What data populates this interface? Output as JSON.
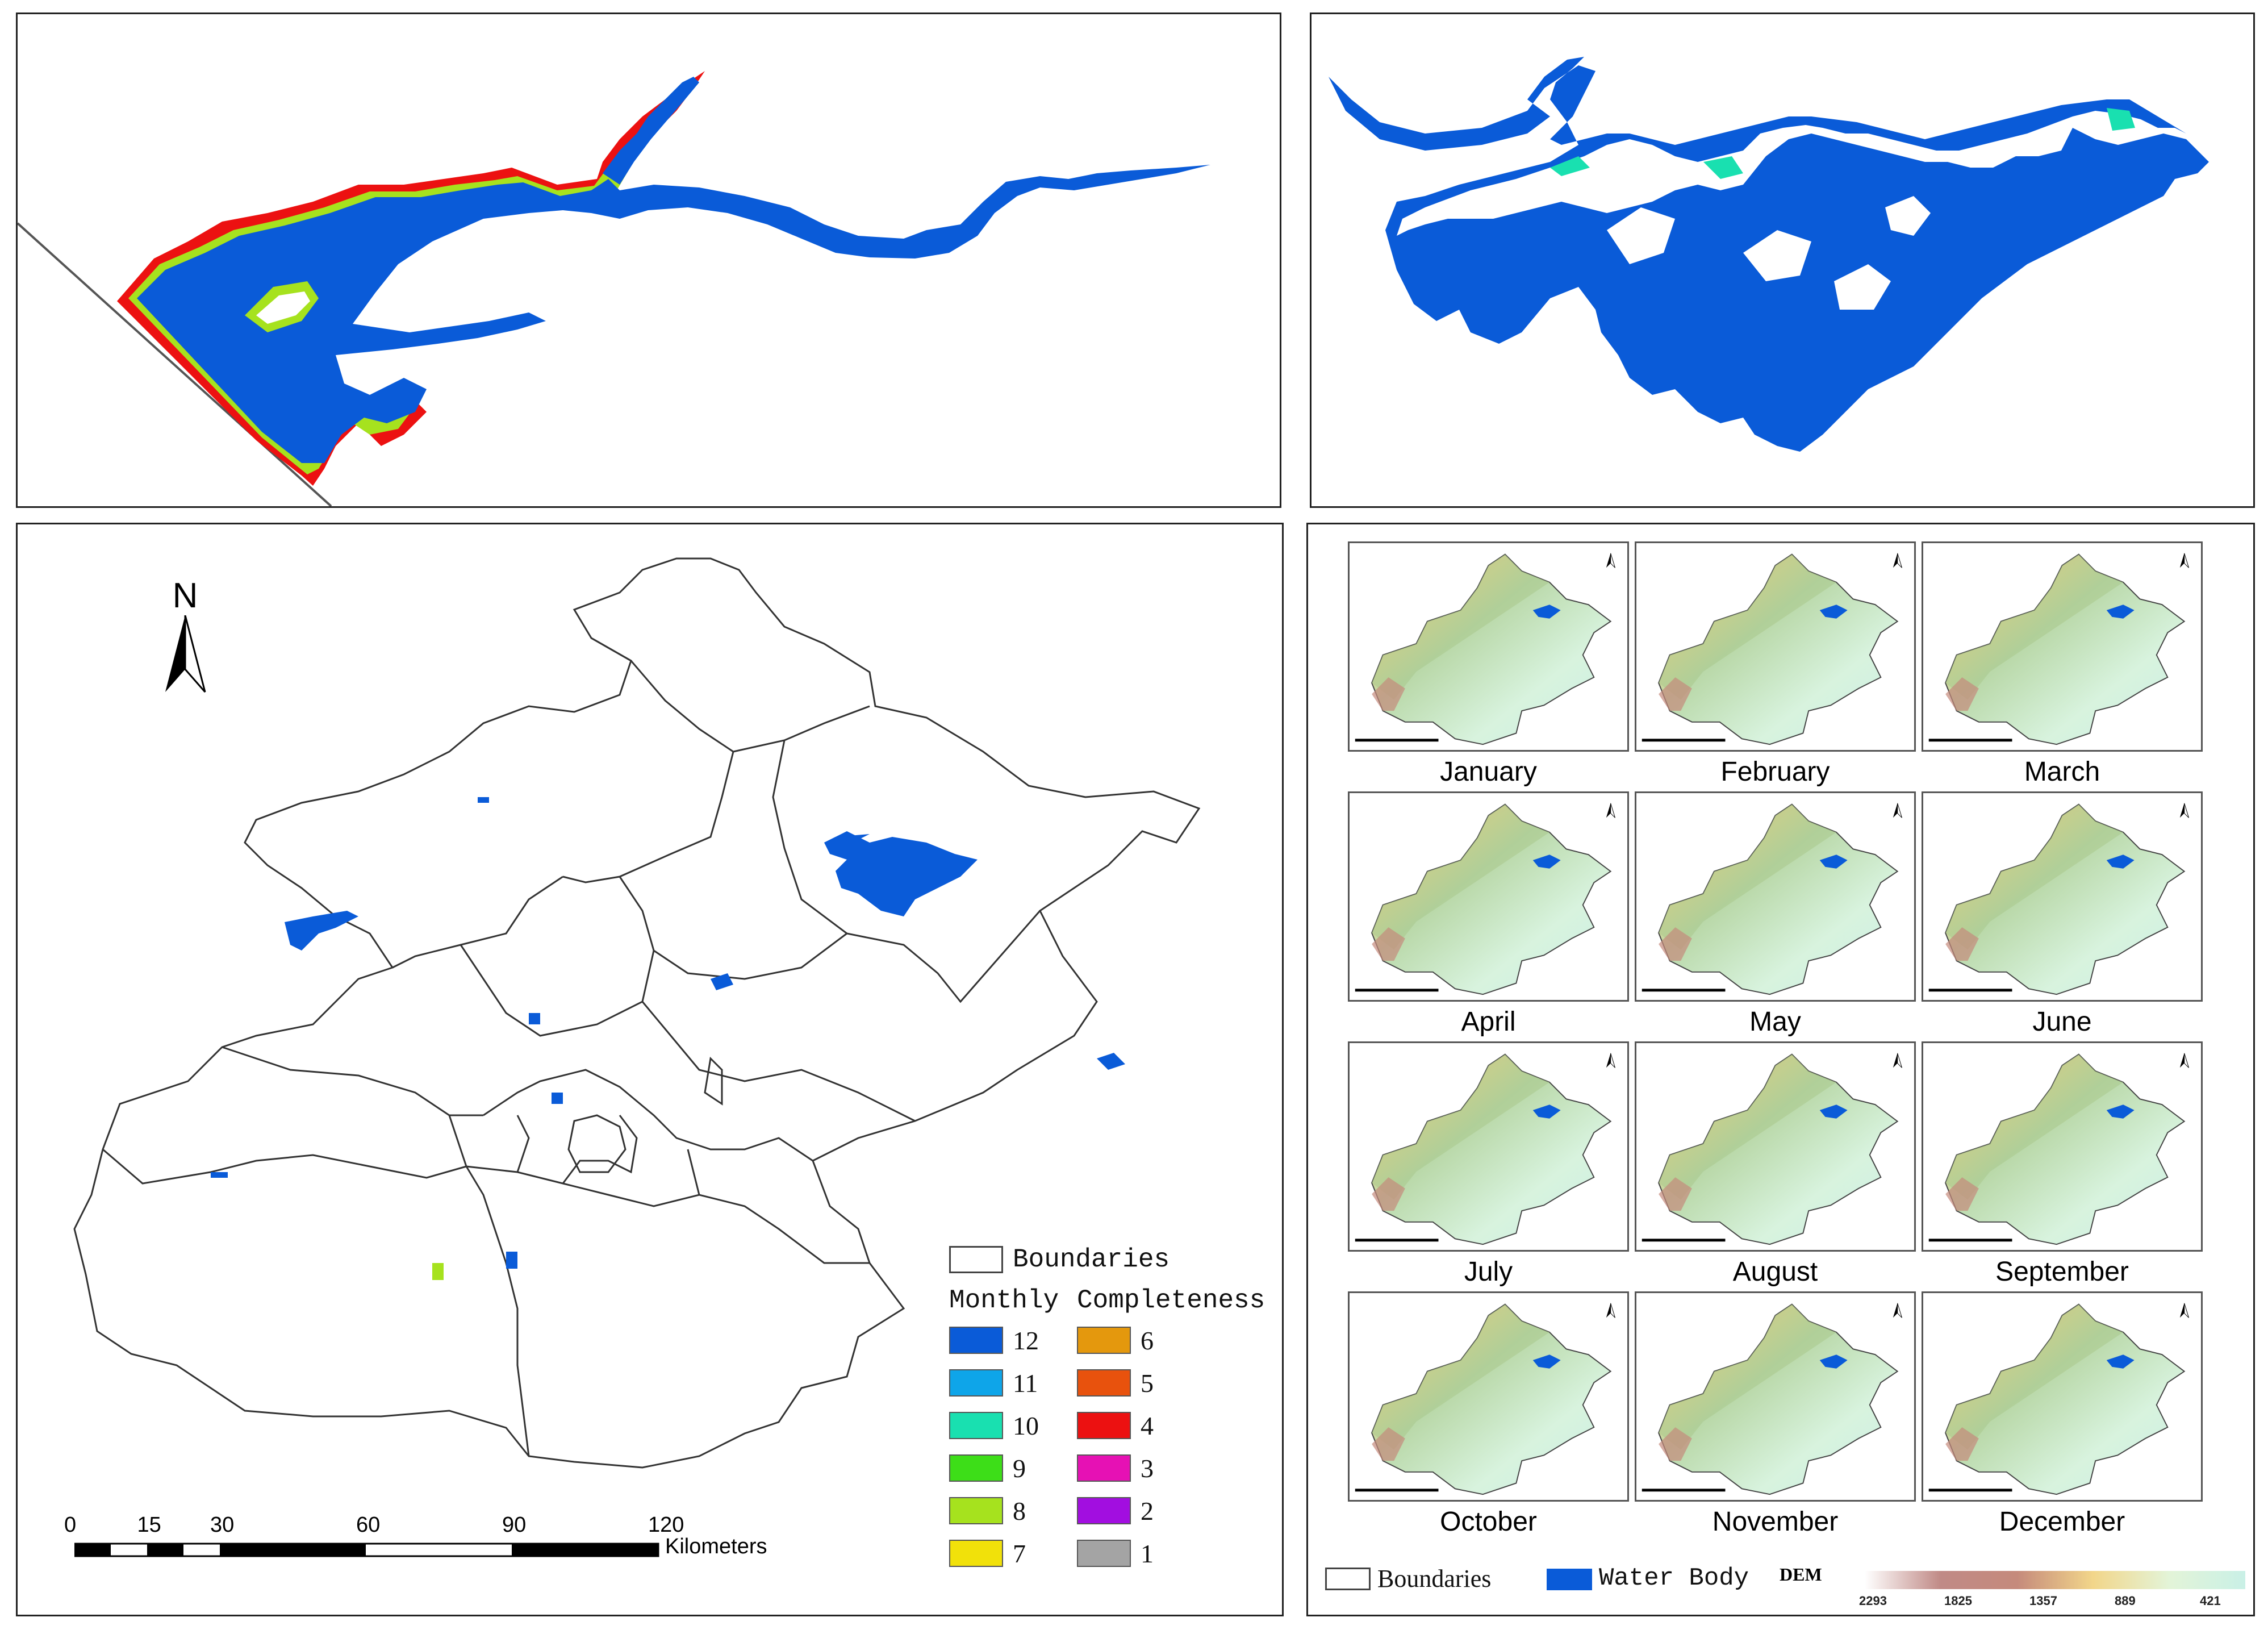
{
  "colors": {
    "water": "#0a5bd8",
    "boundary": "#333333",
    "panel_border": "#222222"
  },
  "overview_map": {
    "north_label": "N",
    "legend": {
      "boundaries_label": "Boundaries",
      "title_left": "Monthly",
      "title_right": "Completeness",
      "classes": [
        {
          "value": "12",
          "color": "#0a5bd8"
        },
        {
          "value": "11",
          "color": "#0ea5e9"
        },
        {
          "value": "10",
          "color": "#19e0b0"
        },
        {
          "value": "9",
          "color": "#3dde18"
        },
        {
          "value": "8",
          "color": "#a6e21e"
        },
        {
          "value": "7",
          "color": "#f1e10a"
        },
        {
          "value": "6",
          "color": "#e4980d"
        },
        {
          "value": "5",
          "color": "#e8520d"
        },
        {
          "value": "4",
          "color": "#ec1111"
        },
        {
          "value": "3",
          "color": "#e611b4"
        },
        {
          "value": "2",
          "color": "#a20ee0"
        },
        {
          "value": "1",
          "color": "#a4a4a4"
        }
      ]
    },
    "scale_bar": {
      "ticks": [
        "0",
        "15",
        "30",
        "60",
        "90",
        "120"
      ],
      "unit": "Kilometers"
    }
  },
  "monthly_panel": {
    "months": [
      "January",
      "February",
      "March",
      "April",
      "May",
      "June",
      "July",
      "August",
      "September",
      "October",
      "November",
      "December"
    ],
    "north_label": "N",
    "legend": {
      "boundaries_label": "Boundaries",
      "water_label": "Water Body",
      "dem_label": "DEM",
      "dem_ticks": [
        "2293",
        "1825",
        "1357",
        "889",
        "421"
      ],
      "dem_colors": [
        "#ffffff",
        "#c08a86",
        "#c58a7c",
        "#f2d68a",
        "#e3f4d8",
        "#c9f0e6"
      ]
    }
  }
}
